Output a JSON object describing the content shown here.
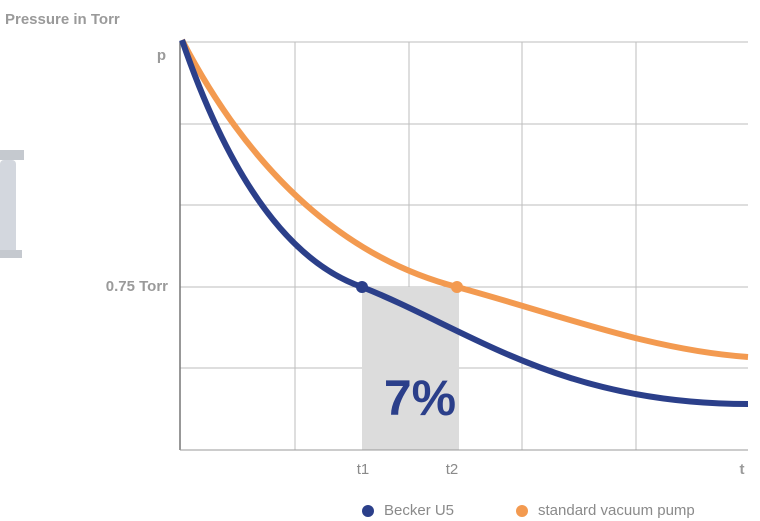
{
  "header": {
    "title": "Pressure in Torr"
  },
  "axis": {
    "y_label": "p",
    "y_marker": "0.75 Torr",
    "x_marks": [
      "t1",
      "t2"
    ],
    "x_label": "t"
  },
  "annotation": "7%",
  "legend": [
    "Becker U5",
    "standard vacuum pump"
  ]
}
